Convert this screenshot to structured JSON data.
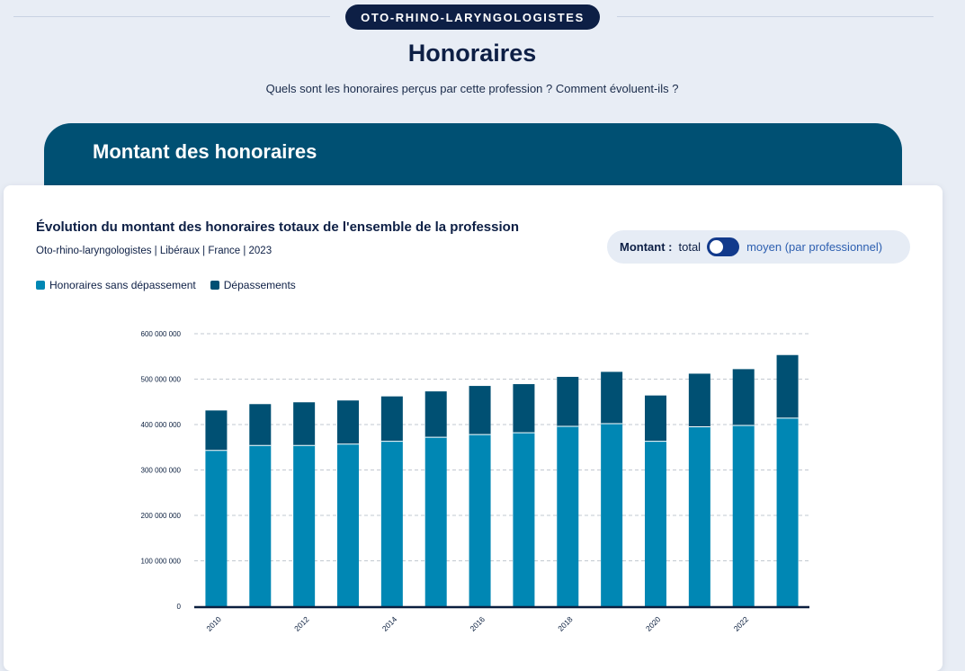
{
  "header": {
    "profession_badge": "OTO-RHINO-LARYNGOLOGISTES",
    "title": "Honoraires",
    "subtitle": "Quels sont les honoraires perçus par cette profession ? Comment évoluent-ils ?"
  },
  "section": {
    "title": "Montant des honoraires"
  },
  "card": {
    "title": "Évolution du montant des honoraires totaux de l'ensemble de la profession",
    "subtitle": "Oto-rhino-laryngologistes | Libéraux | France | 2023",
    "toggle": {
      "prefix": "Montant :",
      "left_label": "total",
      "right_label": "moyen (par professionnel)",
      "state": "total"
    }
  },
  "colors": {
    "base": "#0087b4",
    "overrun": "#005073",
    "axis": "#0b1f3f",
    "grid": "#c2c8d0"
  },
  "chart_data": {
    "type": "bar",
    "stacked": true,
    "categories": [
      "2010",
      "2011",
      "2012",
      "2013",
      "2014",
      "2015",
      "2016",
      "2017",
      "2018",
      "2019",
      "2020",
      "2021",
      "2022",
      "2023"
    ],
    "tick_labels": [
      "2010",
      "2012",
      "2014",
      "2016",
      "2018",
      "2020",
      "2022"
    ],
    "series": [
      {
        "name": "Honoraires sans dépassement",
        "values": [
          343000000,
          354000000,
          354000000,
          357000000,
          363000000,
          372000000,
          378000000,
          382000000,
          396000000,
          402000000,
          363000000,
          395000000,
          398000000,
          414000000
        ]
      },
      {
        "name": "Dépassements",
        "values": [
          88000000,
          91000000,
          95000000,
          96000000,
          99000000,
          101000000,
          107000000,
          107000000,
          109000000,
          114000000,
          101000000,
          117000000,
          124000000,
          139000000
        ]
      }
    ],
    "y_ticks": [
      {
        "value": 0,
        "label": "0"
      },
      {
        "value": 100000000,
        "label": "100 000 000"
      },
      {
        "value": 200000000,
        "label": "200 000 000"
      },
      {
        "value": 300000000,
        "label": "300 000 000"
      },
      {
        "value": 400000000,
        "label": "400 000 000"
      },
      {
        "value": 500000000,
        "label": "500 000 000"
      },
      {
        "value": 600000000,
        "label": "600 000 000"
      }
    ],
    "ylim": [
      0,
      600000000
    ],
    "grid": true,
    "legend_position": "top-left"
  }
}
